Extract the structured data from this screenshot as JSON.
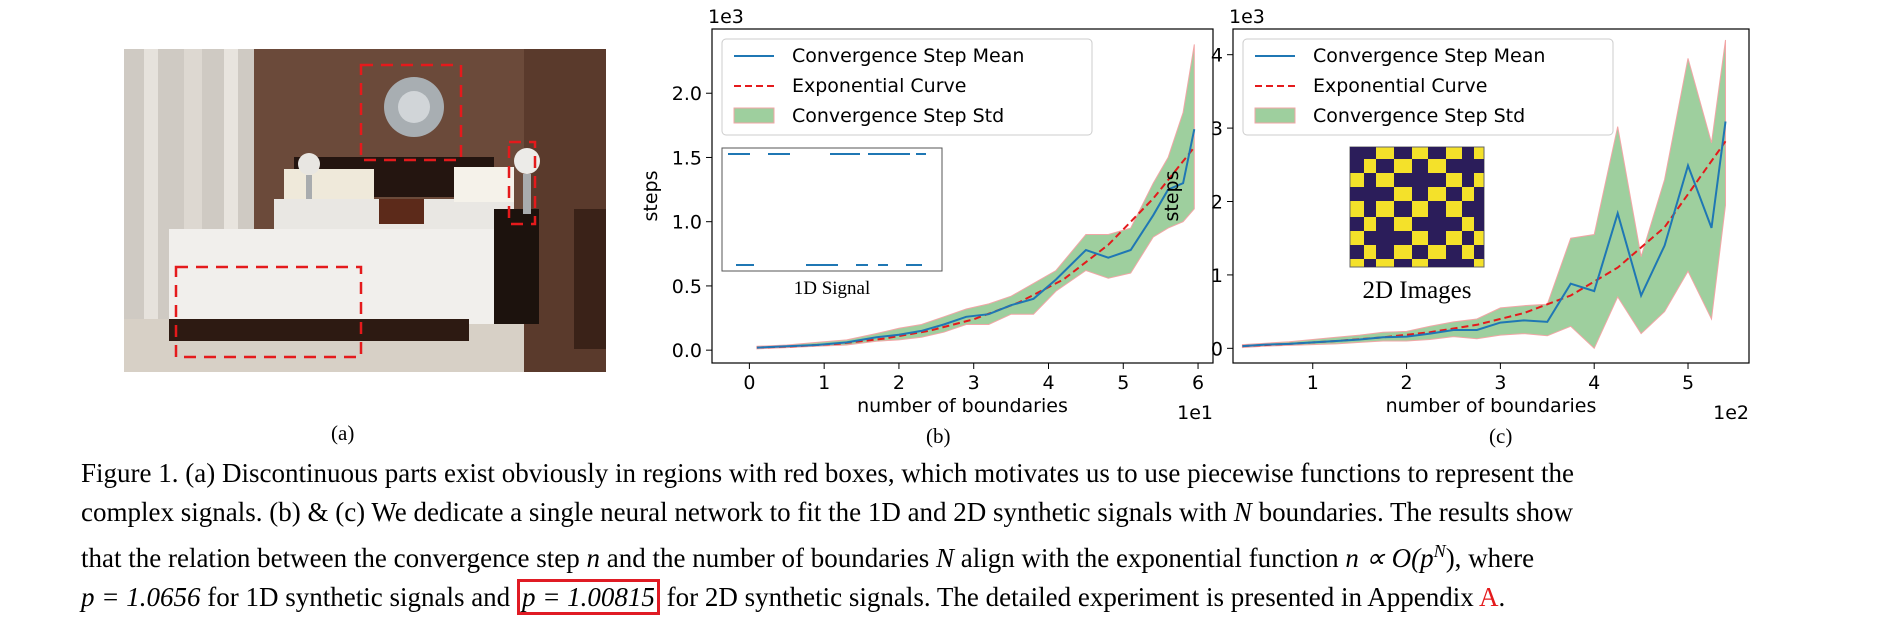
{
  "panel_labels": {
    "a": "(a)",
    "b": "(b)",
    "c": "(c)"
  },
  "photo": {
    "description_icon": "bedroom-photo",
    "box_color": "#e41a1c"
  },
  "chart_data": [
    {
      "id": "b",
      "type": "line",
      "ylabel": "steps",
      "xlabel": "number of boundaries",
      "x_scale_label": "1e1",
      "y_scale_label": "1e3",
      "xlim": [
        -0.5,
        6.2
      ],
      "ylim": [
        -0.1,
        2.5
      ],
      "xticks": [
        0,
        1,
        2,
        3,
        4,
        5,
        6
      ],
      "yticks": [
        0.0,
        0.5,
        1.0,
        1.5,
        2.0
      ],
      "xtick_labels": [
        "0",
        "1",
        "2",
        "3",
        "4",
        "5",
        "6"
      ],
      "ytick_labels": [
        "0.0",
        "0.5",
        "1.0",
        "1.5",
        "2.0"
      ],
      "legend": [
        "Convergence Step Mean",
        "Exponential Curve",
        "Convergence Step Std"
      ],
      "legend_position": "top-left",
      "series": [
        {
          "name": "Convergence Step Mean",
          "color": "#1f77b4",
          "x": [
            0.1,
            0.5,
            0.9,
            1.3,
            1.7,
            2.0,
            2.3,
            2.6,
            2.9,
            3.2,
            3.5,
            3.8,
            4.1,
            4.5,
            4.8,
            5.1,
            5.4,
            5.6,
            5.8,
            5.95
          ],
          "y": [
            0.02,
            0.03,
            0.04,
            0.06,
            0.1,
            0.12,
            0.15,
            0.2,
            0.26,
            0.28,
            0.35,
            0.4,
            0.55,
            0.78,
            0.72,
            0.78,
            1.05,
            1.25,
            1.3,
            1.72
          ]
        },
        {
          "name": "Exponential Curve",
          "color": "#e41a1c",
          "x": [
            0.1,
            0.6,
            1.2,
            1.8,
            2.4,
            3.0,
            3.6,
            4.2,
            4.8,
            5.4,
            5.95
          ],
          "y": [
            0.02,
            0.03,
            0.05,
            0.09,
            0.15,
            0.24,
            0.37,
            0.55,
            0.82,
            1.18,
            1.58
          ]
        },
        {
          "name": "Convergence Step Std",
          "color": "#9ecf9e",
          "x": [
            0.1,
            0.5,
            0.9,
            1.3,
            1.7,
            2.0,
            2.3,
            2.6,
            2.9,
            3.2,
            3.5,
            3.8,
            4.1,
            4.5,
            4.8,
            5.1,
            5.4,
            5.6,
            5.8,
            5.95
          ],
          "upper": [
            0.03,
            0.04,
            0.06,
            0.08,
            0.13,
            0.17,
            0.2,
            0.26,
            0.32,
            0.36,
            0.42,
            0.52,
            0.62,
            0.9,
            0.9,
            0.95,
            1.3,
            1.5,
            1.85,
            2.38
          ],
          "lower": [
            0.01,
            0.02,
            0.03,
            0.04,
            0.07,
            0.08,
            0.1,
            0.14,
            0.2,
            0.2,
            0.28,
            0.28,
            0.46,
            0.62,
            0.56,
            0.6,
            0.88,
            0.95,
            1.0,
            1.1
          ]
        }
      ],
      "inset": {
        "label": "1D Signal",
        "type": "step-signal"
      }
    },
    {
      "id": "c",
      "type": "line",
      "ylabel": "steps",
      "xlabel": "number of boundaries",
      "x_scale_label": "1e2",
      "y_scale_label": "1e3",
      "xlim": [
        0.15,
        5.65
      ],
      "ylim": [
        -0.2,
        4.35
      ],
      "xticks": [
        1,
        2,
        3,
        4,
        5
      ],
      "yticks": [
        0,
        1,
        2,
        3,
        4
      ],
      "xtick_labels": [
        "1",
        "2",
        "3",
        "4",
        "5"
      ],
      "ytick_labels": [
        "0",
        "1",
        "2",
        "3",
        "4"
      ],
      "legend": [
        "Convergence Step Mean",
        "Exponential Curve",
        "Convergence Step Std"
      ],
      "legend_position": "top-left",
      "series": [
        {
          "name": "Convergence Step Mean",
          "color": "#1f77b4",
          "x": [
            0.25,
            0.5,
            0.75,
            1.0,
            1.25,
            1.5,
            1.75,
            2.0,
            2.25,
            2.5,
            2.75,
            3.0,
            3.25,
            3.5,
            3.75,
            4.0,
            4.25,
            4.5,
            4.75,
            5.0,
            5.25,
            5.4
          ],
          "y": [
            0.03,
            0.05,
            0.06,
            0.08,
            0.1,
            0.12,
            0.15,
            0.16,
            0.2,
            0.25,
            0.25,
            0.35,
            0.38,
            0.36,
            0.88,
            0.78,
            1.84,
            0.72,
            1.4,
            2.49,
            1.64,
            3.09
          ]
        },
        {
          "name": "Exponential Curve",
          "color": "#e41a1c",
          "x": [
            0.25,
            0.75,
            1.25,
            1.75,
            2.25,
            2.75,
            3.25,
            3.75,
            4.25,
            4.75,
            5.4
          ],
          "y": [
            0.03,
            0.06,
            0.1,
            0.15,
            0.22,
            0.32,
            0.48,
            0.72,
            1.1,
            1.65,
            2.82
          ]
        },
        {
          "name": "Convergence Step Std",
          "color": "#9ecf9e",
          "x": [
            0.25,
            0.5,
            0.75,
            1.0,
            1.25,
            1.5,
            1.75,
            2.0,
            2.25,
            2.5,
            2.75,
            3.0,
            3.25,
            3.5,
            3.75,
            4.0,
            4.25,
            4.5,
            4.75,
            5.0,
            5.25,
            5.4
          ],
          "upper": [
            0.05,
            0.07,
            0.09,
            0.12,
            0.15,
            0.18,
            0.22,
            0.23,
            0.3,
            0.36,
            0.4,
            0.55,
            0.58,
            0.6,
            1.5,
            1.55,
            3.02,
            1.25,
            2.3,
            3.95,
            2.8,
            4.2
          ],
          "lower": [
            0.01,
            0.03,
            0.04,
            0.05,
            0.06,
            0.08,
            0.1,
            0.1,
            0.12,
            0.16,
            0.13,
            0.18,
            0.2,
            0.17,
            0.3,
            0.0,
            0.7,
            0.2,
            0.5,
            1.05,
            0.4,
            1.95
          ]
        }
      ],
      "inset": {
        "label": "2D Images",
        "type": "checkerboard",
        "colors": [
          "#2b1d5a",
          "#f4e12a"
        ]
      }
    }
  ],
  "caption": {
    "line1": "Figure 1. (a) Discontinuous parts exist obviously in regions with red boxes, which motivates us to use piecewise functions to represent the",
    "line2a": "complex signals. (b) & (c) We dedicate a single neural network to fit the 1D and 2D synthetic signals with ",
    "line2_N": "N",
    "line2b": " boundaries. The results show",
    "line3a": "that the relation between the convergence step ",
    "line3_n": "n",
    "line3b": " and the number of boundaries ",
    "line3_N": "N",
    "line3c": " align with the exponential function ",
    "line3_formula": "n ∝ O(p",
    "line3_exp": "N",
    "line3_close": "),",
    "line3d": " where",
    "line4_p1": "p = 1.0656",
    "line4a": " for 1D synthetic signals and ",
    "line4_p2": "p = 1.00815",
    "line4b": " for 2D synthetic signals. The detailed experiment is presented in Appendix ",
    "line4_ref": "A",
    "line4c": "."
  }
}
